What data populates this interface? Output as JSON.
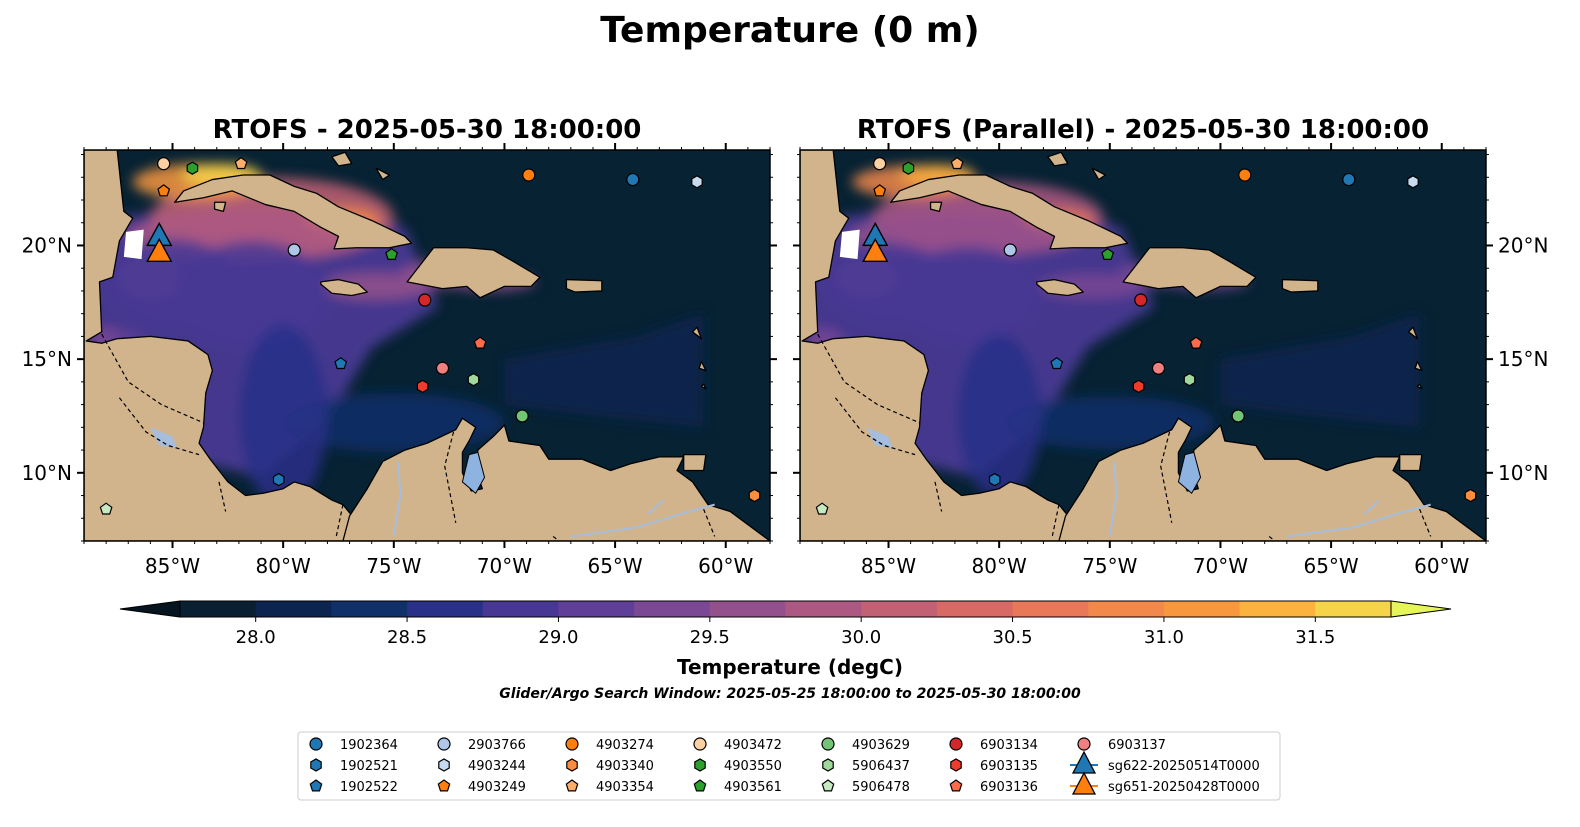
{
  "figure": {
    "title": "Temperature (0 m)",
    "search_window": "Glider/Argo Search Window: 2025-05-25 18:00:00 to 2025-05-30 18:00:00"
  },
  "chart_data": [
    {
      "type": "heatmap",
      "title": "RTOFS - 2025-05-30 18:00:00",
      "xlim": [
        -89,
        -58
      ],
      "ylim": [
        7,
        24.2
      ],
      "xticks": [
        -85,
        -80,
        -75,
        -70,
        -65,
        -60
      ],
      "xtick_labels": [
        "85°W",
        "80°W",
        "75°W",
        "70°W",
        "65°W",
        "60°W"
      ],
      "yticks": [
        10,
        15,
        20
      ],
      "ytick_labels": [
        "10°N",
        "15°N",
        "20°N"
      ],
      "ytick_side": "left"
    },
    {
      "type": "heatmap",
      "title": "RTOFS (Parallel) - 2025-05-30 18:00:00",
      "xlim": [
        -89,
        -58
      ],
      "ylim": [
        7,
        24.2
      ],
      "xticks": [
        -85,
        -80,
        -75,
        -70,
        -65,
        -60
      ],
      "xtick_labels": [
        "85°W",
        "80°W",
        "75°W",
        "70°W",
        "65°W",
        "60°W"
      ],
      "yticks": [
        10,
        15,
        20
      ],
      "ytick_labels": [
        "10°N",
        "15°N",
        "20°N"
      ],
      "ytick_side": "right"
    }
  ],
  "colorbar": {
    "label": "Temperature (degC)",
    "min": 27.75,
    "max": 31.75,
    "ticks": [
      28.0,
      28.5,
      29.0,
      29.5,
      30.0,
      30.5,
      31.0,
      31.5
    ],
    "tick_labels": [
      "28.0",
      "28.5",
      "29.0",
      "29.5",
      "30.0",
      "30.5",
      "31.0",
      "31.5"
    ],
    "colors": [
      "#082032",
      "#0c2550",
      "#10306a",
      "#283088",
      "#483894",
      "#603f98",
      "#7a4894",
      "#94508c",
      "#ac5882",
      "#c26074",
      "#d86a66",
      "#e87858",
      "#f2884a",
      "#f8983e",
      "#fbb23e",
      "#f6d44a"
    ],
    "extend_min_color": "#05141e",
    "extend_max_color": "#e6f55a"
  },
  "colors": {
    "land": "#d2b48c",
    "ocean_dark": "#072233",
    "river": "#a6bddb",
    "lake": "#8fb3e0"
  },
  "floats": [
    {
      "id": "1902364",
      "lon": -64.2,
      "lat": 22.9,
      "marker": "circle",
      "color": "#1f77b4"
    },
    {
      "id": "1902521",
      "lon": -80.2,
      "lat": 9.7,
      "marker": "hexagon",
      "color": "#1f77b4"
    },
    {
      "id": "1902522",
      "lon": -77.4,
      "lat": 14.8,
      "marker": "pentagon",
      "color": "#1f77b4"
    },
    {
      "id": "2903766",
      "lon": -79.5,
      "lat": 19.8,
      "marker": "circle",
      "color": "#aec7e8"
    },
    {
      "id": "4903244",
      "lon": -61.3,
      "lat": 22.8,
      "marker": "hexagon",
      "color": "#c6dbef"
    },
    {
      "id": "4903249",
      "lon": -85.4,
      "lat": 22.4,
      "marker": "pentagon",
      "color": "#ff7f0e"
    },
    {
      "id": "4903274",
      "lon": -68.9,
      "lat": 23.1,
      "marker": "circle",
      "color": "#ff7f0e"
    },
    {
      "id": "4903340",
      "lon": -58.7,
      "lat": 9.0,
      "marker": "hexagon",
      "color": "#fd8d3c"
    },
    {
      "id": "4903354",
      "lon": -81.9,
      "lat": 23.6,
      "marker": "pentagon",
      "color": "#fdae6b"
    },
    {
      "id": "4903472",
      "lon": -85.4,
      "lat": 23.6,
      "marker": "circle",
      "color": "#fdd0a2"
    },
    {
      "id": "4903550",
      "lon": -84.1,
      "lat": 23.4,
      "marker": "hexagon",
      "color": "#2ca02c"
    },
    {
      "id": "4903561",
      "lon": -75.1,
      "lat": 19.6,
      "marker": "pentagon",
      "color": "#2ca02c"
    },
    {
      "id": "4903629",
      "lon": -69.2,
      "lat": 12.5,
      "marker": "circle",
      "color": "#74c476"
    },
    {
      "id": "5906437",
      "lon": -71.4,
      "lat": 14.1,
      "marker": "hexagon",
      "color": "#a1d99b"
    },
    {
      "id": "5906478",
      "lon": -88.0,
      "lat": 8.4,
      "marker": "pentagon",
      "color": "#c7e9c0"
    },
    {
      "id": "6903134",
      "lon": -73.6,
      "lat": 17.6,
      "marker": "circle",
      "color": "#d62728"
    },
    {
      "id": "6903135",
      "lon": -73.7,
      "lat": 13.8,
      "marker": "hexagon",
      "color": "#ef3b2c"
    },
    {
      "id": "6903136",
      "lon": -71.1,
      "lat": 15.7,
      "marker": "pentagon",
      "color": "#fb6a4a"
    },
    {
      "id": "6903137",
      "lon": -72.8,
      "lat": 14.6,
      "marker": "circle",
      "color": "#f08080"
    }
  ],
  "gliders": [
    {
      "id": "sg622-20250514T0000",
      "lon": -85.6,
      "lat": 20.4,
      "color": "#1f77b4"
    },
    {
      "id": "sg651-20250428T0000",
      "lon": -85.6,
      "lat": 19.7,
      "color": "#ff7f0e"
    }
  ]
}
